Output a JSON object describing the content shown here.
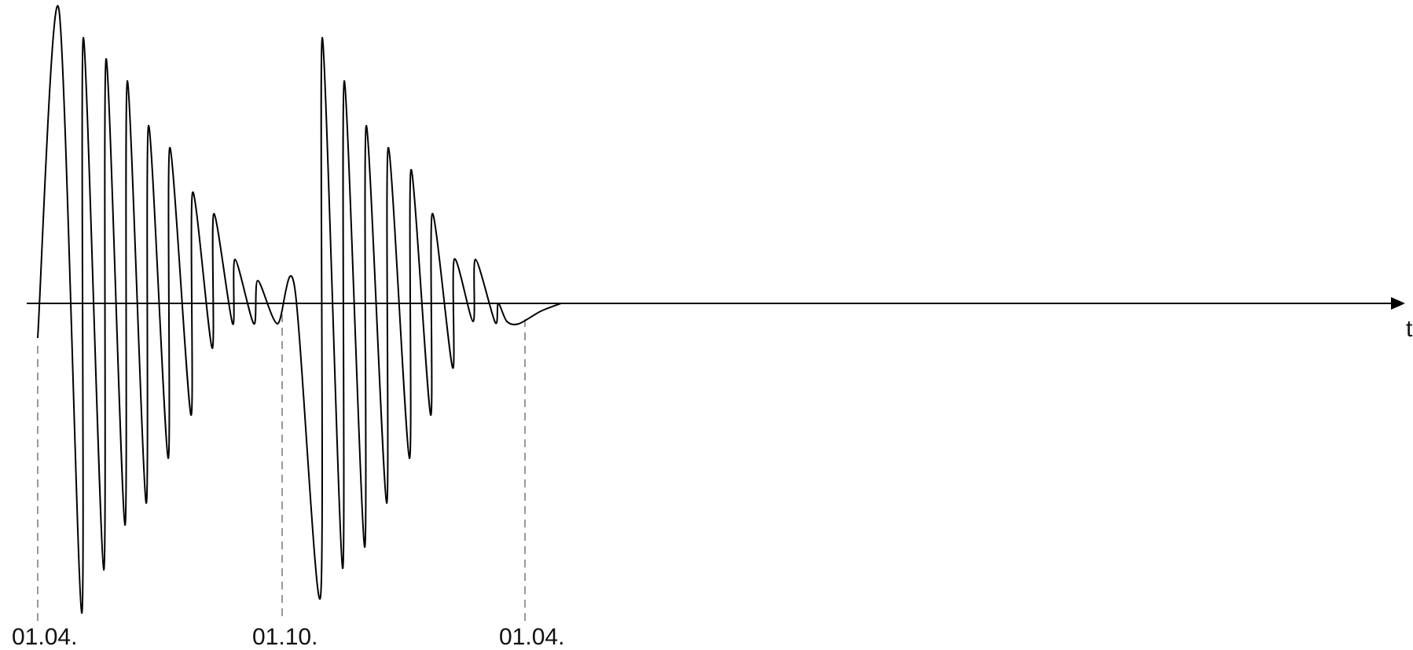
{
  "diagram": {
    "axis_label": "t",
    "date_labels": [
      "01.04.",
      "01.10.",
      "01.04."
    ],
    "colors": {
      "curve": "#000000",
      "axis": "#000000",
      "guide": "#999999",
      "text": "#111111"
    }
  }
}
